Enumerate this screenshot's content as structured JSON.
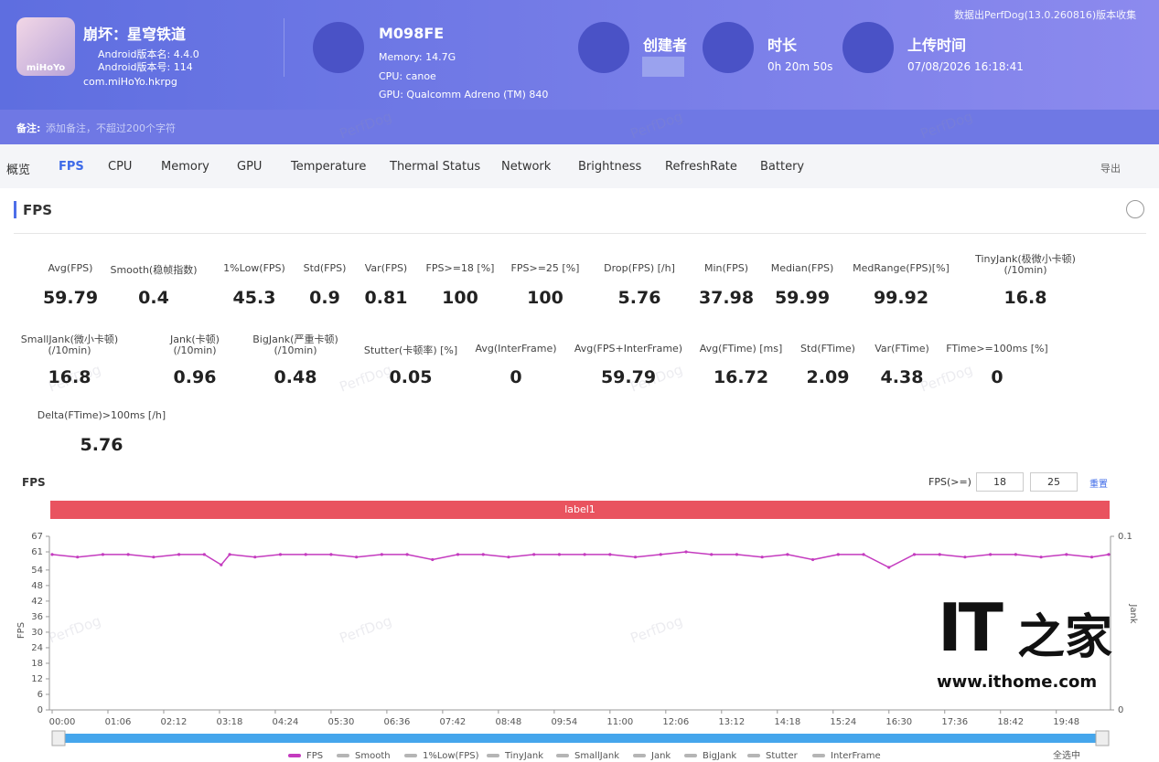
{
  "header": {
    "notice": "数据出PerfDog(13.0.260816)版本收集",
    "app": {
      "name": "崩坏：星穹铁道",
      "version_name": "Android版本名: 4.4.0",
      "version_code": "Android版本号: 114",
      "package": "com.miHoYo.hkrpg",
      "icon_text": "miHoYo"
    },
    "device": {
      "model": "M098FE",
      "memory": "Memory: 14.7G",
      "cpu": "CPU: canoe",
      "gpu": "GPU: Qualcomm Adreno (TM) 840"
    },
    "creator": {
      "label": "创建者"
    },
    "duration": {
      "label": "时长",
      "value": "0h 20m 50s"
    },
    "upload": {
      "label": "上传时间",
      "value": "07/08/2026 16:18:41"
    },
    "note_label": "备注:",
    "note_placeholder": "添加备注，不超过200个字符"
  },
  "watermark": "PerfDog",
  "tabs": [
    "概览",
    "FPS",
    "CPU",
    "Memory",
    "GPU",
    "Temperature",
    "Thermal Status",
    "Network",
    "Brightness",
    "RefreshRate",
    "Battery"
  ],
  "active_tab": 1,
  "export": "导出",
  "section_title": "FPS",
  "metrics": [
    [
      {
        "label": "Avg(FPS)",
        "value": 59.79
      },
      {
        "label": "Smooth(稳帧指数)",
        "value": 0.4
      },
      {
        "label": "1%Low(FPS)",
        "value": 45.3
      },
      {
        "label": "Std(FPS)",
        "value": 0.9
      },
      {
        "label": "Var(FPS)",
        "value": 0.81
      },
      {
        "label": "FPS>=18 [%]",
        "value": 100
      },
      {
        "label": "FPS>=25 [%]",
        "value": 100
      },
      {
        "label": "Drop(FPS) [/h]",
        "value": 5.76
      },
      {
        "label": "Min(FPS)",
        "value": 37.98
      },
      {
        "label": "Median(FPS)",
        "value": 59.99
      },
      {
        "label": "MedRange(FPS)[%]",
        "value": 99.92
      },
      {
        "label": "TinyJank(极微小卡顿)",
        "label2": "(/10min)",
        "value": 16.8
      }
    ],
    [
      {
        "label": "SmallJank(微小卡顿)",
        "label2": "(/10min)",
        "value": 16.8
      },
      {
        "label": "Jank(卡顿)",
        "label2": "(/10min)",
        "value": 0.96
      },
      {
        "label": "BigJank(严重卡顿)",
        "label2": "(/10min)",
        "value": 0.48
      },
      {
        "label": "Stutter(卡顿率) [%]",
        "value": 0.05
      },
      {
        "label": "Avg(InterFrame)",
        "value": 0
      },
      {
        "label": "Avg(FPS+InterFrame)",
        "value": 59.79
      },
      {
        "label": "Avg(FTime) [ms]",
        "value": 16.72
      },
      {
        "label": "Std(FTime)",
        "value": 2.09
      },
      {
        "label": "Var(FTime)",
        "value": 4.38
      },
      {
        "label": "FTime>=100ms [%]",
        "value": 0
      }
    ],
    [
      {
        "label": "Delta(FTime)>100ms [/h]",
        "value": 5.76
      }
    ]
  ],
  "fps_chart": {
    "type": "line",
    "title": "FPS",
    "threshold_label": "FPS(>=)",
    "thresholds": [
      18,
      25
    ],
    "reset": "重置",
    "band_label": "label1",
    "y_label": "FPS",
    "y2_label": "Jank",
    "xlim": [
      0,
      1250
    ],
    "xticks": [
      {
        "value": 0,
        "label": "00:00"
      },
      {
        "value": 66,
        "label": "01:06"
      },
      {
        "value": 132,
        "label": "02:12"
      },
      {
        "value": 198,
        "label": "03:18"
      },
      {
        "value": 264,
        "label": "04:24"
      },
      {
        "value": 330,
        "label": "05:30"
      },
      {
        "value": 396,
        "label": "06:36"
      },
      {
        "value": 462,
        "label": "07:42"
      },
      {
        "value": 528,
        "label": "08:48"
      },
      {
        "value": 594,
        "label": "09:54"
      },
      {
        "value": 660,
        "label": "11:00"
      },
      {
        "value": 726,
        "label": "12:06"
      },
      {
        "value": 792,
        "label": "13:12"
      },
      {
        "value": 858,
        "label": "14:18"
      },
      {
        "value": 924,
        "label": "15:24"
      },
      {
        "value": 990,
        "label": "16:30"
      },
      {
        "value": 1056,
        "label": "17:36"
      },
      {
        "value": 1122,
        "label": "18:42"
      },
      {
        "value": 1188,
        "label": "19:48"
      }
    ],
    "ylim": [
      0,
      67
    ],
    "yticks": [
      0,
      6,
      12,
      18,
      24,
      30,
      36,
      42,
      48,
      54,
      61,
      67
    ],
    "y2lim": [
      0,
      0.1
    ],
    "y2ticks": [
      0,
      0.1
    ],
    "series": [
      {
        "name": "FPS",
        "color": "#c43bbf",
        "x": [
          0,
          30,
          60,
          90,
          120,
          150,
          180,
          200,
          210,
          240,
          270,
          300,
          330,
          360,
          390,
          420,
          450,
          480,
          510,
          540,
          570,
          600,
          630,
          660,
          690,
          720,
          750,
          780,
          810,
          840,
          870,
          900,
          930,
          960,
          990,
          1020,
          1050,
          1080,
          1110,
          1140,
          1170,
          1200,
          1230,
          1250
        ],
        "values": [
          60,
          59,
          60,
          60,
          59,
          60,
          60,
          56,
          60,
          59,
          60,
          60,
          60,
          59,
          60,
          60,
          58,
          60,
          60,
          59,
          60,
          60,
          60,
          60,
          59,
          60,
          61,
          60,
          60,
          59,
          60,
          58,
          60,
          60,
          55,
          60,
          60,
          59,
          60,
          60,
          59,
          60,
          59,
          60
        ]
      },
      {
        "name": "Smooth",
        "color": "#b5b5b5"
      },
      {
        "name": "1%Low(FPS)",
        "color": "#b5b5b5"
      },
      {
        "name": "TinyJank",
        "color": "#b5b5b5"
      },
      {
        "name": "SmallJank",
        "color": "#b5b5b5"
      },
      {
        "name": "Jank",
        "color": "#b5b5b5"
      },
      {
        "name": "BigJank",
        "color": "#b5b5b5"
      },
      {
        "name": "Stutter",
        "color": "#b5b5b5"
      },
      {
        "name": "InterFrame",
        "color": "#b5b5b5"
      }
    ],
    "select_all": "全选中"
  },
  "logo": {
    "brand": "IT",
    "brand2": "之家",
    "url": "www.ithome.com"
  }
}
